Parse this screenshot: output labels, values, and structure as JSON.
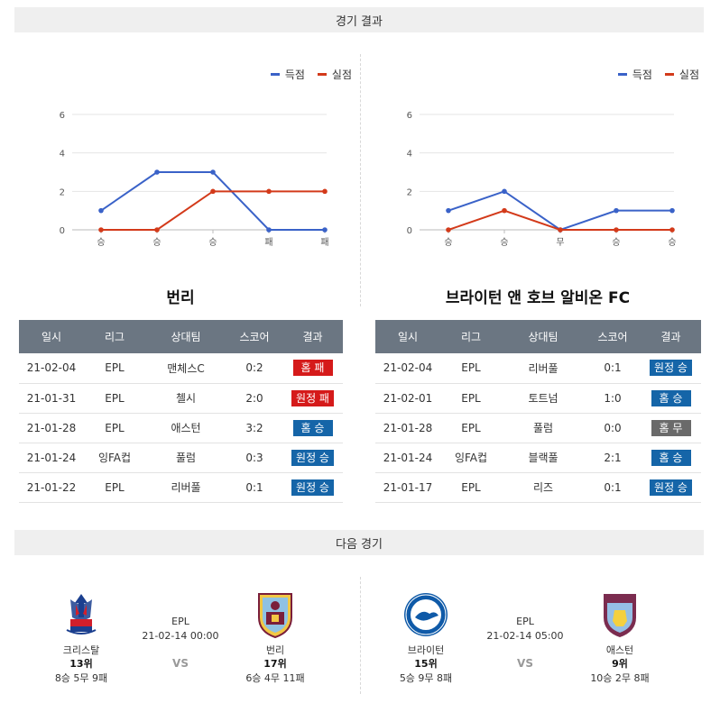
{
  "sections": {
    "results": "경기 결과",
    "next": "다음 경기"
  },
  "legend": {
    "scored": "득점",
    "conceded": "실점"
  },
  "colors": {
    "scored": "#3a62c8",
    "conceded": "#d33a1a",
    "win": "#1565a8",
    "loss": "#d51a1a",
    "draw": "#6a6a6a",
    "header": "#6b7682"
  },
  "chart_data": [
    {
      "type": "line",
      "categories": [
        "승",
        "승",
        "승",
        "패",
        "패"
      ],
      "ylim": [
        0,
        6
      ],
      "yticks": [
        "0",
        "2",
        "4",
        "6"
      ],
      "grid": true,
      "legend_position": "top-right",
      "series": [
        {
          "name": "득점",
          "values": [
            1,
            3,
            3,
            0,
            0
          ]
        },
        {
          "name": "실점",
          "values": [
            0,
            0,
            2,
            2,
            2
          ]
        }
      ]
    },
    {
      "type": "line",
      "categories": [
        "승",
        "승",
        "무",
        "승",
        "승"
      ],
      "ylim": [
        0,
        6
      ],
      "yticks": [
        "0",
        "2",
        "4",
        "6"
      ],
      "grid": true,
      "legend_position": "top-right",
      "series": [
        {
          "name": "득점",
          "values": [
            1,
            2,
            0,
            1,
            1
          ]
        },
        {
          "name": "실점",
          "values": [
            0,
            1,
            0,
            0,
            0
          ]
        }
      ]
    }
  ],
  "teams": {
    "left": {
      "name": "번리",
      "headers": [
        "일시",
        "리그",
        "상대팀",
        "스코어",
        "결과"
      ],
      "rows": [
        {
          "date": "21-02-04",
          "league": "EPL",
          "opponent": "맨체스C",
          "score": "0:2",
          "result": "홈 패",
          "kind": "loss"
        },
        {
          "date": "21-01-31",
          "league": "EPL",
          "opponent": "첼시",
          "score": "2:0",
          "result": "원정 패",
          "kind": "loss"
        },
        {
          "date": "21-01-28",
          "league": "EPL",
          "opponent": "애스턴",
          "score": "3:2",
          "result": "홈 승",
          "kind": "win"
        },
        {
          "date": "21-01-24",
          "league": "잉FA컵",
          "opponent": "풀럼",
          "score": "0:3",
          "result": "원정 승",
          "kind": "win"
        },
        {
          "date": "21-01-22",
          "league": "EPL",
          "opponent": "리버풀",
          "score": "0:1",
          "result": "원정 승",
          "kind": "win"
        }
      ]
    },
    "right": {
      "name": "브라이턴 앤 호브 알비온 FC",
      "headers": [
        "일시",
        "리그",
        "상대팀",
        "스코어",
        "결과"
      ],
      "rows": [
        {
          "date": "21-02-04",
          "league": "EPL",
          "opponent": "리버풀",
          "score": "0:1",
          "result": "원정 승",
          "kind": "win"
        },
        {
          "date": "21-02-01",
          "league": "EPL",
          "opponent": "토트넘",
          "score": "1:0",
          "result": "홈 승",
          "kind": "win"
        },
        {
          "date": "21-01-28",
          "league": "EPL",
          "opponent": "풀럼",
          "score": "0:0",
          "result": "홈 무",
          "kind": "draw"
        },
        {
          "date": "21-01-24",
          "league": "잉FA컵",
          "opponent": "블랙풀",
          "score": "2:1",
          "result": "홈 승",
          "kind": "win"
        },
        {
          "date": "21-01-17",
          "league": "EPL",
          "opponent": "리즈",
          "score": "0:1",
          "result": "원정 승",
          "kind": "win"
        }
      ]
    }
  },
  "next_matches": [
    {
      "league": "EPL",
      "datetime": "21-02-14 00:00",
      "vs": "VS",
      "home": {
        "name": "크리스탈",
        "rank": "13위",
        "record": "8승 5무 9패",
        "crest": "crystal-palace-crest-icon"
      },
      "away": {
        "name": "번리",
        "rank": "17위",
        "record": "6승 4무 11패",
        "crest": "burnley-crest-icon"
      }
    },
    {
      "league": "EPL",
      "datetime": "21-02-14 05:00",
      "vs": "VS",
      "home": {
        "name": "브라이턴",
        "rank": "15위",
        "record": "5승 9무 8패",
        "crest": "brighton-crest-icon"
      },
      "away": {
        "name": "애스턴",
        "rank": "9위",
        "record": "10승 2무 8패",
        "crest": "aston-villa-crest-icon"
      }
    }
  ]
}
